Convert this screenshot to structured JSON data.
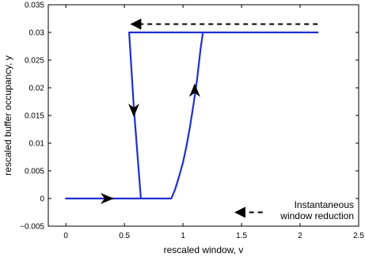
{
  "chart_data": {
    "type": "line",
    "title": "",
    "xlabel": "rescaled window, v",
    "ylabel": "rescaled buffer occupancy, y",
    "xlim": [
      -0.15,
      2.5
    ],
    "ylim": [
      -0.005,
      0.035
    ],
    "grid": false,
    "x_ticks": [
      0,
      0.5,
      1,
      1.5,
      2,
      2.5
    ],
    "x_tick_labels": [
      "0",
      "0.5",
      "1",
      "1.5",
      "2",
      "2.5"
    ],
    "y_ticks": [
      -0.005,
      0,
      0.005,
      0.01,
      0.015,
      0.02,
      0.025,
      0.03,
      0.035
    ],
    "y_tick_labels": [
      "−0.005",
      "0",
      "0.005",
      "0.01",
      "0.015",
      "0.02",
      "0.025",
      "0.03",
      "0.035"
    ],
    "series": [
      {
        "color": "#1f2fcf",
        "line_style": "solid",
        "x": [
          0.0,
          0.3,
          0.6,
          0.9,
          0.93,
          0.96,
          1.0,
          1.03,
          1.06,
          1.09,
          1.12,
          1.15,
          1.17,
          1.5,
          2.15,
          1.17,
          0.54,
          0.58,
          0.64,
          0.9
        ],
        "y": [
          0.0,
          0.0,
          0.0,
          0.0,
          0.0015,
          0.0035,
          0.0065,
          0.0095,
          0.013,
          0.017,
          0.0215,
          0.027,
          0.03,
          0.03,
          0.03,
          0.03,
          0.03,
          0.0165,
          0.0,
          0.0
        ]
      }
    ],
    "direction_arrows": [
      {
        "x": 0.35,
        "y": 0.0,
        "direction": "right"
      },
      {
        "x": 1.1,
        "y": 0.0195,
        "direction": "up"
      },
      {
        "x": 0.58,
        "y": 0.016,
        "direction": "down"
      }
    ],
    "dashed_arrows": [
      {
        "x_from": 2.15,
        "x_to": 0.58,
        "y": 0.0315
      },
      {
        "x_from": 1.68,
        "x_to": 1.47,
        "y": -0.0025
      }
    ],
    "annotation": {
      "lines": [
        "Instantaneous",
        "window reduction"
      ]
    }
  }
}
